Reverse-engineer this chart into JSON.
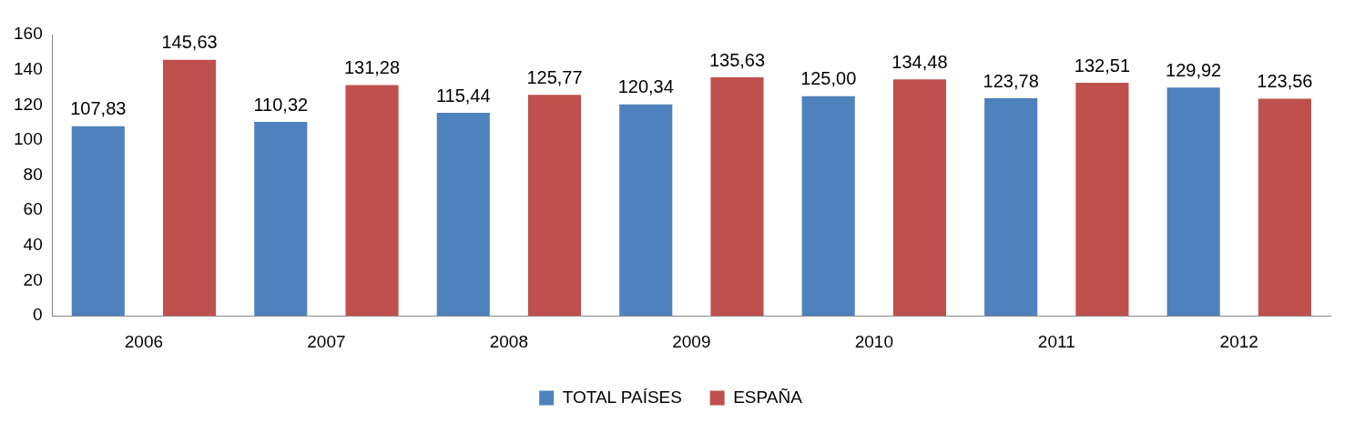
{
  "chart_data": {
    "type": "bar",
    "categories": [
      "2006",
      "2007",
      "2008",
      "2009",
      "2010",
      "2011",
      "2012"
    ],
    "series": [
      {
        "name": "TOTAL PAÍSES",
        "color": "#4f81bd",
        "values": [
          107.83,
          110.32,
          115.44,
          120.34,
          125.0,
          123.78,
          129.92
        ],
        "value_labels": [
          "107,83",
          "110,32",
          "115,44",
          "120,34",
          "125,00",
          "123,78",
          "129,92"
        ]
      },
      {
        "name": "ESPAÑA",
        "color": "#c0504d",
        "values": [
          145.63,
          131.28,
          125.77,
          135.63,
          134.48,
          132.51,
          123.56
        ],
        "value_labels": [
          "145,63",
          "131,28",
          "125,77",
          "135,63",
          "134,48",
          "132,51",
          "123,56"
        ]
      }
    ],
    "ylim": [
      0,
      160
    ],
    "yticks": [
      0,
      20,
      40,
      60,
      80,
      100,
      120,
      140,
      160
    ],
    "grid": false,
    "legend": "bottom"
  }
}
